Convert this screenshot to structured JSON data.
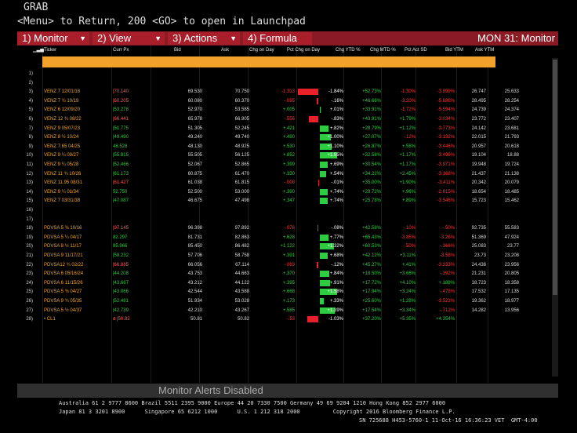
{
  "header": {
    "grab": "GRAB",
    "command": "<Menu> to Return, 200 <GO> to open in Launchpad"
  },
  "menu": {
    "items": [
      "1) Monitor",
      "2) View",
      "3) Actions",
      "4) Formula"
    ],
    "right": "MON 31: Monitor"
  },
  "columns": [
    "Ticker",
    "Curr Px",
    "Bid",
    "Ask",
    "Chg on Day",
    "Pct Chg on Day",
    "Chg YTD %",
    "Chg MTD %",
    "Pct Act SD",
    "Bid YTM",
    "Ask YTM"
  ],
  "rows": [
    {
      "idx": "1)",
      "ticker": "",
      "px": "",
      "bid": "",
      "ask": "",
      "chg": "",
      "pct": "",
      "ytd": "",
      "mtd": "",
      "psd": "",
      "bytm": "",
      "aytm": "",
      "bar": 0
    },
    {
      "idx": "2)",
      "ticker": "",
      "px": "",
      "bid": "",
      "ask": "",
      "chg": "",
      "pct": "",
      "ytd": "",
      "mtd": "",
      "psd": "",
      "bytm": "",
      "aytm": "",
      "bar": 0
    },
    {
      "idx": "3)",
      "ticker": "VENZ 7 12/01/18",
      "px": "|70.140",
      "bid": "69.530",
      "ask": "70.750",
      "chg": "-1.313",
      "pct": "-1.84%",
      "ytd": "+52.73%",
      "mtd": "-1.30%",
      "psd": "-3.899%",
      "bytm": "26.747",
      "aytm": "25.633",
      "bar": -1.84
    },
    {
      "idx": "4)",
      "ticker": "VENZ 7 ¾ 10/19",
      "px": "|60.205",
      "bid": "60.080",
      "ask": "60.370",
      "chg": "-.095",
      "pct": "-.16%",
      "ytd": "+46.66%",
      "mtd": "-3.20%",
      "psd": "-5.686%",
      "bytm": "28.495",
      "aytm": "28.254",
      "bar": -0.16
    },
    {
      "idx": "5)",
      "ticker": "VENZ 6 12/09/20",
      "px": "|53.278",
      "bid": "52.970",
      "ask": "53.585",
      "chg": "+.005",
      "pct": "+.01%",
      "ytd": "+33.91%",
      "mtd": "-1.72%",
      "psd": "-5.594%",
      "bytm": "24.739",
      "aytm": "24.374",
      "bar": 0.01
    },
    {
      "idx": "6)",
      "ticker": "VENZ 12 ¾ 08/22",
      "px": "|66.441",
      "bid": "65.978",
      "ask": "66.905",
      "chg": "-.556",
      "pct": "-.83%",
      "ytd": "+43.91%",
      "mtd": "+1.79%",
      "psd": "-3.034%",
      "bytm": "23.772",
      "aytm": "23.407",
      "bar": -0.83
    },
    {
      "idx": "7)",
      "ticker": "VENZ 9 05/07/23",
      "px": "|51.775",
      "bid": "51.305",
      "ask": "52.245",
      "chg": "+.421",
      "pct": "+.82%",
      "ytd": "+28.79%",
      "mtd": "+1.12%",
      "psd": "-3.773%",
      "bytm": "24.142",
      "aytm": "23.681",
      "bar": 0.82
    },
    {
      "idx": "8)",
      "ticker": "VENZ 8 ½ 10/24",
      "px": "|49.490",
      "bid": "49.240",
      "ask": "49.740",
      "chg": "+.490",
      "pct": "+1.00%",
      "ytd": "+27.07%",
      "mtd": "-.12%",
      "psd": "-3.132%",
      "bytm": "22.015",
      "aytm": "21.793",
      "bar": 1.0
    },
    {
      "idx": "9)",
      "ticker": "VENZ 7.65 04/25",
      "px": "48.528",
      "bid": "48.130",
      "ask": "48.925",
      "chg": "+.530",
      "pct": "+1.10%",
      "ytd": "+26.87%",
      "mtd": "+.58%",
      "psd": "-3.446%",
      "bytm": "20.957",
      "aytm": "20.618",
      "bar": 1.1
    },
    {
      "idx": "10)",
      "ticker": "VENZ 9 ¼ 09/27",
      "px": "|55.815",
      "bid": "55.505",
      "ask": "56.125",
      "chg": "+.852",
      "pct": "+1.55%",
      "ytd": "+32.58%",
      "mtd": "+1.17%",
      "psd": "-3.496%",
      "bytm": "19.104",
      "aytm": "18.88",
      "bar": 1.55
    },
    {
      "idx": "11)",
      "ticker": "VENZ 9 ¼ 05/28",
      "px": "|52.466",
      "bid": "52.067",
      "ask": "52.865",
      "chg": "+.399",
      "pct": "+.69%",
      "ytd": "+30.54%",
      "mtd": "+1.17%",
      "psd": "-3.971%",
      "bytm": "19.948",
      "aytm": "19.724",
      "bar": 0.69
    },
    {
      "idx": "12)",
      "ticker": "VENZ 11 ¾ 10/26",
      "px": "|61.173",
      "bid": "60.875",
      "ask": "61.470",
      "chg": "+.330",
      "pct": "+.54%",
      "ytd": "+34.22%",
      "mtd": "+2.45%",
      "psd": "-3.168%",
      "bytm": "21.437",
      "aytm": "21.138",
      "bar": 0.54
    },
    {
      "idx": "13)",
      "ticker": "VENZ 11.95 08/31",
      "px": "|61.427",
      "bid": "61.038",
      "ask": "61.815",
      "chg": "-.008",
      "pct": "-.01%",
      "ytd": "+35.00%",
      "mtd": "+1.90%",
      "psd": "-3.411%",
      "bytm": "20.342",
      "aytm": "20.079",
      "bar": -0.01
    },
    {
      "idx": "14)",
      "ticker": "VENZ 9 ¼ 01/34",
      "px": "52.750",
      "bid": "52.500",
      "ask": "53.000",
      "chg": "+.390",
      "pct": "+.74%",
      "ytd": "+29.72%",
      "mtd": "+.96%",
      "psd": "-2.815%",
      "bytm": "18.654",
      "aytm": "18.485",
      "bar": 0.74
    },
    {
      "idx": "15)",
      "ticker": "VENZ 7 03/31/38",
      "px": "|47.087",
      "bid": "46.675",
      "ask": "47.498",
      "chg": "+.347",
      "pct": "+.74%",
      "ytd": "+25.78%",
      "mtd": "+.89%",
      "psd": "-3.546%",
      "bytm": "15.723",
      "aytm": "15.462",
      "bar": 0.74
    },
    {
      "idx": "16)",
      "ticker": "",
      "px": "",
      "bid": "",
      "ask": "",
      "chg": "",
      "pct": "",
      "ytd": "",
      "mtd": "",
      "psd": "",
      "bytm": "",
      "aytm": "",
      "bar": 0
    },
    {
      "idx": "17)",
      "ticker": "",
      "px": "",
      "bid": "",
      "ask": "",
      "chg": "",
      "pct": "",
      "ytd": "",
      "mtd": "",
      "psd": "",
      "bytm": "",
      "aytm": "",
      "bar": 0
    },
    {
      "idx": "18)",
      "ticker": "PDVSA 5 ⅜ 10/16",
      "px": "|97.145",
      "bid": "96.398",
      "ask": "97.892",
      "chg": "-.076",
      "pct": "-.08%",
      "ytd": "+42.58%",
      "mtd": "-.10%",
      "psd": "-.50%",
      "bytm": "92.735",
      "aytm": "55.583",
      "bar": -0.08
    },
    {
      "idx": "19)",
      "ticker": "PDVSA 5 ¼ 04/17",
      "px": "82.297",
      "bid": "81.731",
      "ask": "82.863",
      "chg": "+.628",
      "pct": "+.77%",
      "ytd": "+65.43%",
      "mtd": "-3.85%",
      "psd": "-3.26%",
      "bytm": "51.369",
      "aytm": "47.924",
      "bar": 0.77
    },
    {
      "idx": "20)",
      "ticker": "PDVSA 8 ½ 11/17",
      "px": "85.966",
      "bid": "85.450",
      "ask": "86.482",
      "chg": "+1.122",
      "pct": "+1.32%",
      "ytd": "+60.53%",
      "mtd": "-.50%",
      "psd": "-.366%",
      "bytm": "25.083",
      "aytm": "23.77",
      "bar": 1.32
    },
    {
      "idx": "21)",
      "ticker": "PDVSA 9 11/17/21",
      "px": "|58.232",
      "bid": "57.706",
      "ask": "58.758",
      "chg": "+.391",
      "pct": "+.68%",
      "ytd": "+42.12%",
      "mtd": "+3.11%",
      "psd": "-3.58%",
      "bytm": "23.73",
      "aytm": "23.208",
      "bar": 0.68
    },
    {
      "idx": "22)",
      "ticker": "PDVSA12 ¾ 02/22",
      "px": "|66.885",
      "bid": "66.056",
      "ask": "67.114",
      "chg": "-.083",
      "pct": "-.12%",
      "ytd": "+45.27%",
      "mtd": "+.41%",
      "psd": "-3.333%",
      "bytm": "24.436",
      "aytm": "23.956",
      "bar": -0.12
    },
    {
      "idx": "23)",
      "ticker": "PDVSA 6 05/16/24",
      "px": "|44.208",
      "bid": "43.753",
      "ask": "44.663",
      "chg": "+.370",
      "pct": "+.84%",
      "ytd": "+18.50%",
      "mtd": "+3.66%",
      "psd": "-.392%",
      "bytm": "21.231",
      "aytm": "20.805",
      "bar": 0.84
    },
    {
      "idx": "24)",
      "ticker": "PDVSA 6 11/15/26",
      "px": "|43.667",
      "bid": "43.212",
      "ask": "44.122",
      "chg": "+.395",
      "pct": "+.91%",
      "ytd": "+17.72%",
      "mtd": "+4.10%",
      "psd": "+.188%",
      "bytm": "18.723",
      "aytm": "18.358",
      "bar": 0.91
    },
    {
      "idx": "25)",
      "ticker": "PDVSA 5 ⅜ 04/27",
      "px": "|43.066",
      "bid": "42.544",
      "ask": "43.588",
      "chg": "+.668",
      "pct": "+1.58%",
      "ytd": "+17.94%",
      "mtd": "+3.24%",
      "psd": "-.478%",
      "bytm": "17.532",
      "aytm": "17.135",
      "bar": 1.58
    },
    {
      "idx": "26)",
      "ticker": "PDVSA 9 ¾ 05/35",
      "px": "|52.481",
      "bid": "51.934",
      "ask": "53.028",
      "chg": "+.173",
      "pct": "+.33%",
      "ytd": "+25.60%",
      "mtd": "+1.28%",
      "psd": "-3.523%",
      "bytm": "19.362",
      "aytm": "18.977",
      "bar": 0.33
    },
    {
      "idx": "27)",
      "ticker": "PDVSA 5 ½ 04/37",
      "px": "|42.739",
      "bid": "42.210",
      "ask": "43.267",
      "chg": "+.585",
      "pct": "+1.39%",
      "ytd": "+17.54%",
      "mtd": "+3.34%",
      "psd": "-.712%",
      "bytm": "14.282",
      "aytm": "13.956",
      "bar": 1.39
    },
    {
      "idx": "28)",
      "ticker": "• CL1",
      "px": "d  |50.82",
      "bid": "50.81",
      "ask": "50.82",
      "chg": "-.53",
      "pct": "-1.03%",
      "ytd": "+37.20%",
      "mtd": "+5.35%",
      "psd": "+4.354%",
      "bytm": "",
      "aytm": "",
      "bar": -1.03
    }
  ],
  "status": "Monitor Alerts Disabled",
  "footer": {
    "line1": "Australia 61 2 9777 8600 Brazil 5511 2395 9000 Europe 44 20 7330 7500 Germany 49 69 9204 1210 Hong Kong 852 2977 6000",
    "line2": "Japan 81 3 3201 8900      Singapore 65 6212 1000      U.S. 1 212 318 2000          Copyright 2016 Bloomberg Finance L.P.",
    "line3": "SN 725688 H453-5760-1 11-Oct-16 16:36:23 VET  GMT-4:00"
  }
}
